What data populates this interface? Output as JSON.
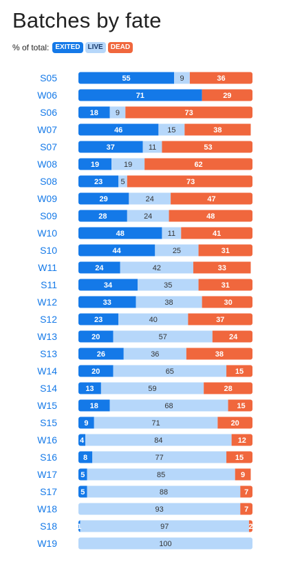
{
  "title": "Batches by fate",
  "legend": {
    "prefix": "% of total:",
    "exited": "EXITED",
    "live": "LIVE",
    "dead": "DEAD"
  },
  "colors": {
    "exited": "#1479e8",
    "live": "#b6d7fa",
    "dead": "#f0673d",
    "category": "#1479e8",
    "label_on_dark": "#ffffff",
    "label_on_light": "#333333"
  },
  "chart_data": {
    "type": "bar",
    "orientation": "horizontal",
    "stacked": true,
    "xlim": [
      0,
      100
    ],
    "categories": [
      "S05",
      "W06",
      "S06",
      "W07",
      "S07",
      "W08",
      "S08",
      "W09",
      "S09",
      "W10",
      "S10",
      "W11",
      "S11",
      "W12",
      "S12",
      "W13",
      "S13",
      "W14",
      "S14",
      "W15",
      "S15",
      "W16",
      "S16",
      "W17",
      "S17",
      "W18",
      "S18",
      "W19"
    ],
    "series": [
      {
        "name": "EXITED",
        "values": [
          55,
          71,
          18,
          46,
          37,
          19,
          23,
          29,
          28,
          48,
          44,
          24,
          34,
          33,
          23,
          20,
          26,
          20,
          13,
          18,
          9,
          4,
          8,
          5,
          5,
          0,
          1,
          0
        ]
      },
      {
        "name": "LIVE",
        "values": [
          9,
          0,
          9,
          15,
          11,
          19,
          5,
          24,
          24,
          11,
          25,
          42,
          35,
          38,
          40,
          57,
          36,
          65,
          59,
          68,
          71,
          84,
          77,
          85,
          88,
          93,
          97,
          100
        ]
      },
      {
        "name": "DEAD",
        "values": [
          36,
          29,
          73,
          38,
          53,
          62,
          73,
          47,
          48,
          41,
          31,
          33,
          31,
          30,
          37,
          24,
          38,
          15,
          28,
          15,
          20,
          12,
          15,
          9,
          7,
          7,
          2,
          0
        ]
      }
    ]
  }
}
